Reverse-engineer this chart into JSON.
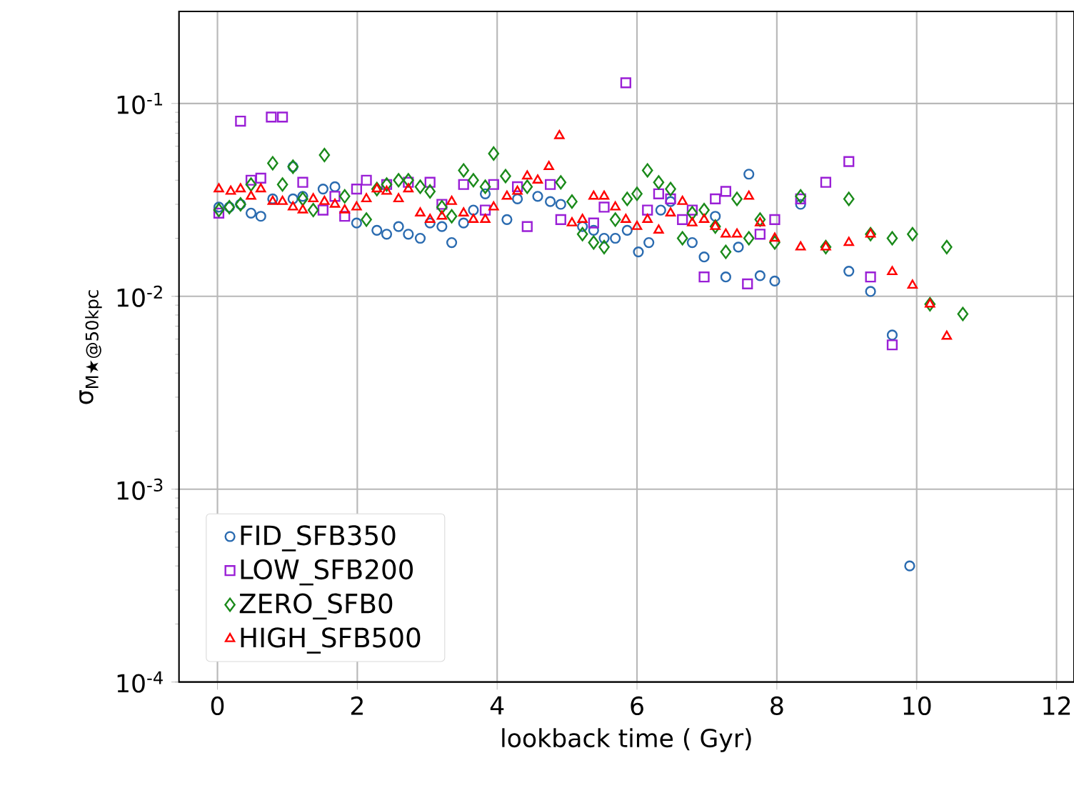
{
  "chart_data": {
    "type": "scatter",
    "xlabel": "lookback time ( Gyr)",
    "ylabel": "σ$_{M★@50kpc}$",
    "log": "y",
    "grid": true,
    "legend": "bottom left",
    "xlim": [
      -0.55,
      12.25
    ],
    "ylim": [
      0.0001,
      0.3
    ],
    "xticks": [
      0,
      2,
      4,
      6,
      8,
      10,
      12
    ],
    "yticks": [
      {
        "value": 0.0001,
        "label": "10$^{-4}$"
      },
      {
        "value": 0.001,
        "label": "10$^{-3}$"
      },
      {
        "value": 0.01,
        "label": "10$^{-2}$"
      },
      {
        "value": 0.1,
        "label": "10$^{-1}$"
      }
    ],
    "series": [
      {
        "name": "FID_SFB350",
        "color": "#2a6bb0",
        "marker": "circle",
        "x": [
          0.02,
          0.17,
          0.33,
          0.48,
          0.62,
          0.79,
          1.08,
          1.08,
          1.22,
          1.51,
          1.68,
          1.99,
          2.28,
          2.42,
          2.59,
          2.73,
          2.9,
          3.04,
          3.21,
          3.35,
          3.52,
          3.66,
          3.83,
          4.14,
          4.29,
          4.58,
          4.76,
          4.91,
          5.22,
          5.38,
          5.53,
          5.69,
          5.86,
          6.02,
          6.17,
          6.34,
          6.48,
          6.79,
          6.96,
          7.12,
          7.27,
          7.45,
          7.6,
          7.76,
          7.97,
          8.34,
          9.03,
          9.34,
          9.65,
          9.9
        ],
        "values": [
          0.029,
          0.029,
          0.03,
          0.027,
          0.026,
          0.032,
          0.047,
          0.032,
          0.033,
          0.036,
          0.037,
          0.024,
          0.022,
          0.021,
          0.023,
          0.021,
          0.02,
          0.024,
          0.023,
          0.019,
          0.024,
          0.028,
          0.034,
          0.025,
          0.032,
          0.033,
          0.031,
          0.03,
          0.023,
          0.022,
          0.02,
          0.02,
          0.022,
          0.017,
          0.019,
          0.028,
          0.031,
          0.019,
          0.016,
          0.026,
          0.0126,
          0.018,
          0.043,
          0.0128,
          0.012,
          0.03,
          0.0135,
          0.0106,
          0.0063,
          0.0004
        ]
      },
      {
        "name": "LOW_SFB200",
        "color": "#9a1fd6",
        "marker": "square",
        "x": [
          0.02,
          0.33,
          0.48,
          0.62,
          0.77,
          0.93,
          1.22,
          1.51,
          1.68,
          1.82,
          1.99,
          2.13,
          2.42,
          2.73,
          3.04,
          3.21,
          3.52,
          3.83,
          3.95,
          4.29,
          4.43,
          4.76,
          4.91,
          5.38,
          5.53,
          5.84,
          6.15,
          6.31,
          6.48,
          6.65,
          6.79,
          6.96,
          7.12,
          7.27,
          7.58,
          7.76,
          7.97,
          8.34,
          8.7,
          9.03,
          9.34,
          9.65
        ],
        "values": [
          0.027,
          0.081,
          0.04,
          0.041,
          0.085,
          0.085,
          0.039,
          0.028,
          0.033,
          0.026,
          0.036,
          0.04,
          0.038,
          0.039,
          0.039,
          0.03,
          0.038,
          0.028,
          0.038,
          0.037,
          0.023,
          0.038,
          0.025,
          0.024,
          0.029,
          0.128,
          0.028,
          0.034,
          0.032,
          0.025,
          0.028,
          0.0126,
          0.032,
          0.035,
          0.0116,
          0.021,
          0.025,
          0.032,
          0.039,
          0.05,
          0.0126,
          0.0056
        ]
      },
      {
        "name": "ZERO_SFB0",
        "color": "#1a8a1a",
        "marker": "diamond",
        "x": [
          0.02,
          0.17,
          0.33,
          0.48,
          0.79,
          0.93,
          1.08,
          1.22,
          1.37,
          1.53,
          1.82,
          2.13,
          2.28,
          2.42,
          2.59,
          2.73,
          2.9,
          3.04,
          3.21,
          3.35,
          3.52,
          3.66,
          3.83,
          3.95,
          4.12,
          4.43,
          4.91,
          5.07,
          5.22,
          5.38,
          5.53,
          5.69,
          5.86,
          6.0,
          6.15,
          6.31,
          6.48,
          6.65,
          6.79,
          6.96,
          7.12,
          7.27,
          7.43,
          7.6,
          7.76,
          7.97,
          8.34,
          8.7,
          9.03,
          9.34,
          9.65,
          9.94,
          10.19,
          10.43,
          10.66
        ],
        "values": [
          0.028,
          0.029,
          0.03,
          0.038,
          0.049,
          0.038,
          0.047,
          0.032,
          0.028,
          0.054,
          0.033,
          0.025,
          0.036,
          0.038,
          0.04,
          0.04,
          0.037,
          0.035,
          0.029,
          0.026,
          0.045,
          0.04,
          0.037,
          0.055,
          0.042,
          0.037,
          0.039,
          0.031,
          0.021,
          0.019,
          0.018,
          0.025,
          0.032,
          0.034,
          0.045,
          0.039,
          0.036,
          0.02,
          0.027,
          0.028,
          0.023,
          0.017,
          0.032,
          0.02,
          0.025,
          0.019,
          0.033,
          0.018,
          0.032,
          0.021,
          0.02,
          0.021,
          0.0091,
          0.018,
          0.0081
        ]
      },
      {
        "name": "HIGH_SFB500",
        "color": "#ff0000",
        "marker": "triangle",
        "x": [
          0.02,
          0.19,
          0.33,
          0.48,
          0.62,
          0.79,
          0.93,
          1.08,
          1.22,
          1.37,
          1.53,
          1.68,
          1.82,
          1.99,
          2.13,
          2.28,
          2.42,
          2.59,
          2.73,
          2.9,
          3.04,
          3.21,
          3.35,
          3.52,
          3.66,
          3.83,
          3.95,
          4.14,
          4.29,
          4.43,
          4.58,
          4.74,
          4.89,
          5.07,
          5.22,
          5.38,
          5.53,
          5.69,
          5.84,
          6.0,
          6.15,
          6.31,
          6.48,
          6.65,
          6.79,
          6.96,
          7.12,
          7.27,
          7.43,
          7.6,
          7.76,
          7.97,
          8.34,
          8.7,
          9.03,
          9.34,
          9.65,
          9.94,
          10.19,
          10.43
        ],
        "values": [
          0.036,
          0.035,
          0.036,
          0.033,
          0.036,
          0.031,
          0.031,
          0.029,
          0.028,
          0.032,
          0.031,
          0.03,
          0.028,
          0.029,
          0.032,
          0.036,
          0.035,
          0.032,
          0.036,
          0.027,
          0.025,
          0.026,
          0.031,
          0.027,
          0.025,
          0.025,
          0.029,
          0.033,
          0.035,
          0.042,
          0.04,
          0.047,
          0.068,
          0.024,
          0.025,
          0.033,
          0.033,
          0.029,
          0.025,
          0.023,
          0.025,
          0.022,
          0.027,
          0.031,
          0.024,
          0.025,
          0.023,
          0.021,
          0.021,
          0.033,
          0.024,
          0.02,
          0.018,
          0.018,
          0.019,
          0.021,
          0.0134,
          0.0114,
          0.0091,
          0.0062
        ]
      }
    ]
  }
}
